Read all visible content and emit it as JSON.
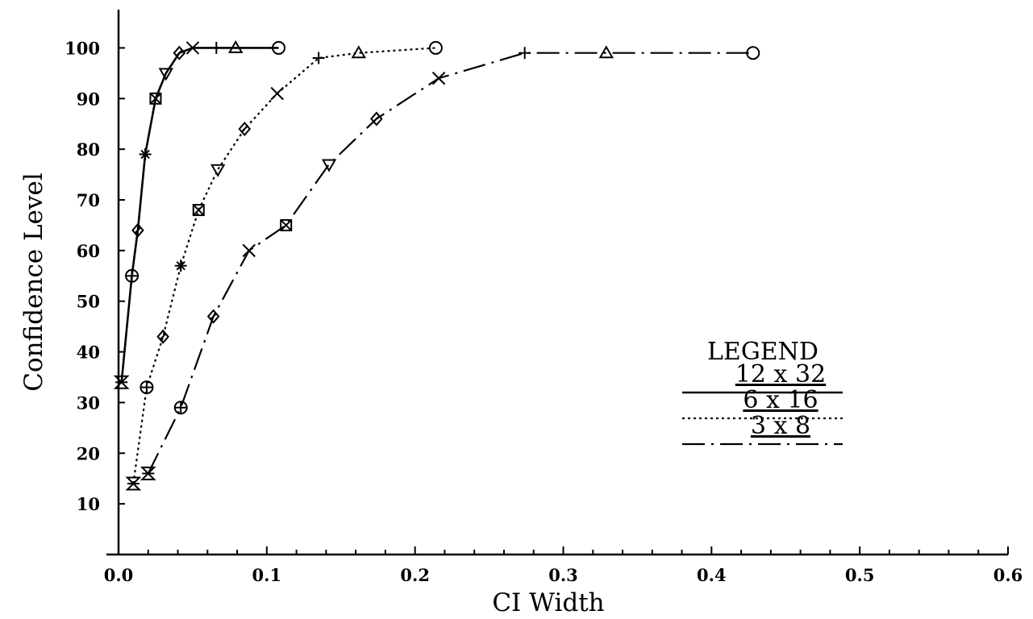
{
  "chart_data": {
    "type": "line",
    "title": "",
    "xlabel": "CI Width",
    "ylabel": "Confidence Level",
    "xlim": [
      0.0,
      0.6
    ],
    "ylim": [
      0,
      105
    ],
    "xticks": [
      "0.0",
      "0.1",
      "0.2",
      "0.3",
      "0.4",
      "0.5",
      "0.6"
    ],
    "yticks": [
      "10",
      "20",
      "30",
      "40",
      "50",
      "60",
      "70",
      "80",
      "90",
      "100"
    ],
    "grid": false,
    "legend": {
      "title": "LEGEND",
      "placement": "right"
    },
    "series": [
      {
        "name": "12 x 32",
        "dash": "solid",
        "points": [
          {
            "x": 0.002,
            "y": 34,
            "marker": "hourglass"
          },
          {
            "x": 0.009,
            "y": 55,
            "marker": "circle-plus"
          },
          {
            "x": 0.013,
            "y": 64,
            "marker": "diamond"
          },
          {
            "x": 0.018,
            "y": 79,
            "marker": "asterisk"
          },
          {
            "x": 0.025,
            "y": 90,
            "marker": "square-x"
          },
          {
            "x": 0.032,
            "y": 95,
            "marker": "triangle-down"
          },
          {
            "x": 0.041,
            "y": 99,
            "marker": "diamond"
          },
          {
            "x": 0.05,
            "y": 100,
            "marker": "x"
          },
          {
            "x": 0.066,
            "y": 100,
            "marker": "plus"
          },
          {
            "x": 0.079,
            "y": 100,
            "marker": "triangle"
          },
          {
            "x": 0.108,
            "y": 100,
            "marker": "circle"
          }
        ]
      },
      {
        "name": "6 x 16",
        "dash": "dotted",
        "points": [
          {
            "x": 0.01,
            "y": 14,
            "marker": "hourglass"
          },
          {
            "x": 0.019,
            "y": 33,
            "marker": "circle-plus"
          },
          {
            "x": 0.03,
            "y": 43,
            "marker": "diamond"
          },
          {
            "x": 0.042,
            "y": 57,
            "marker": "asterisk"
          },
          {
            "x": 0.054,
            "y": 68,
            "marker": "square-x"
          },
          {
            "x": 0.067,
            "y": 76,
            "marker": "triangle-down"
          },
          {
            "x": 0.085,
            "y": 84,
            "marker": "diamond"
          },
          {
            "x": 0.107,
            "y": 91,
            "marker": "x"
          },
          {
            "x": 0.135,
            "y": 98,
            "marker": "plus"
          },
          {
            "x": 0.162,
            "y": 99,
            "marker": "triangle"
          },
          {
            "x": 0.214,
            "y": 100,
            "marker": "circle"
          }
        ]
      },
      {
        "name": "3 x 8",
        "dash": "dash-dot",
        "points": [
          {
            "x": 0.02,
            "y": 16,
            "marker": "hourglass"
          },
          {
            "x": 0.042,
            "y": 29,
            "marker": "circle-plus"
          },
          {
            "x": 0.064,
            "y": 47,
            "marker": "diamond"
          },
          {
            "x": 0.088,
            "y": 60,
            "marker": "x"
          },
          {
            "x": 0.113,
            "y": 65,
            "marker": "square-x"
          },
          {
            "x": 0.142,
            "y": 77,
            "marker": "triangle-down"
          },
          {
            "x": 0.174,
            "y": 86,
            "marker": "diamond"
          },
          {
            "x": 0.216,
            "y": 94,
            "marker": "x"
          },
          {
            "x": 0.274,
            "y": 99,
            "marker": "plus"
          },
          {
            "x": 0.329,
            "y": 99,
            "marker": "triangle"
          },
          {
            "x": 0.428,
            "y": 99,
            "marker": "circle"
          }
        ]
      }
    ]
  }
}
